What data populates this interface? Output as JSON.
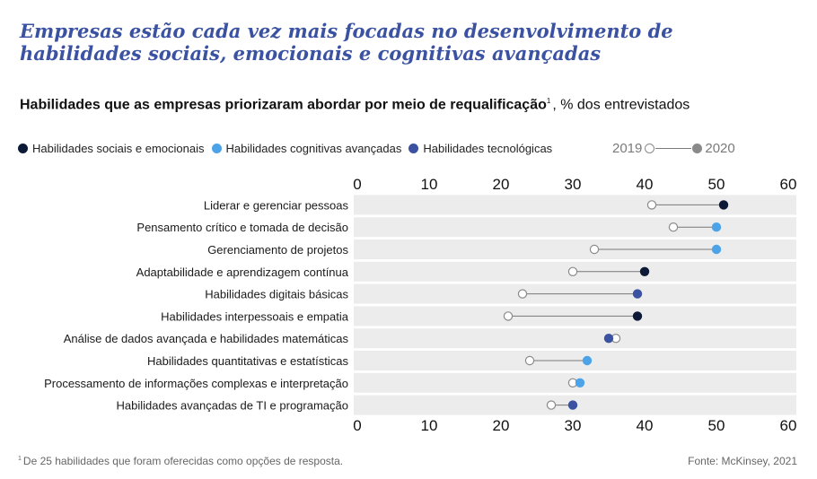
{
  "title": "Empresas estão cada vez mais focadas no desenvolvimento de habilidades sociais, emocionais e cognitivas avançadas",
  "subtitle": {
    "bold": "Habilidades que as empresas priorizaram abordar por meio de requalificação",
    "sup": "1",
    "rest": ", % dos entrevistados"
  },
  "legend": {
    "categories": [
      {
        "label": "Habilidades sociais e emocionais",
        "color": "#0c1a38"
      },
      {
        "label": "Habilidades cognitivas avançadas",
        "color": "#4da3e8"
      },
      {
        "label": "Habilidades tecnológicas",
        "color": "#3a52a1"
      }
    ],
    "year_start": "2019",
    "year_end": "2020"
  },
  "chart_data": {
    "type": "dumbbell",
    "xlim": [
      0,
      60
    ],
    "xticks": [
      "0",
      "10",
      "20",
      "30",
      "40",
      "50",
      "60"
    ],
    "series": [
      {
        "name": "2019",
        "style": "open-circle"
      },
      {
        "name": "2020",
        "style": "filled-circle"
      }
    ],
    "rows": [
      {
        "label": "Liderar e gerenciar pessoas",
        "v2019": 41,
        "v2020": 51,
        "category": 0
      },
      {
        "label": "Pensamento crítico e tomada de decisão",
        "v2019": 44,
        "v2020": 50,
        "category": 1
      },
      {
        "label": "Gerenciamento de projetos",
        "v2019": 33,
        "v2020": 50,
        "category": 1
      },
      {
        "label": "Adaptabilidade e aprendizagem contínua",
        "v2019": 30,
        "v2020": 40,
        "category": 0
      },
      {
        "label": "Habilidades digitais básicas",
        "v2019": 23,
        "v2020": 39,
        "category": 2
      },
      {
        "label": "Habilidades interpessoais e empatia",
        "v2019": 21,
        "v2020": 39,
        "category": 0
      },
      {
        "label": "Análise de dados avançada e habilidades matemáticas",
        "v2019": 36,
        "v2020": 35,
        "category": 2
      },
      {
        "label": "Habilidades quantitativas e estatísticas",
        "v2019": 24,
        "v2020": 32,
        "category": 1
      },
      {
        "label": "Processamento de informações complexas e interpretação",
        "v2019": 30,
        "v2020": 31,
        "category": 1
      },
      {
        "label": "Habilidades avançadas de TI e programação",
        "v2019": 27,
        "v2020": 30,
        "category": 2
      }
    ]
  },
  "footnote": {
    "sup": "1",
    "text": "De 25 habilidades que foram oferecidas como opções de resposta."
  },
  "source": "Fonte: McKinsey, 2021"
}
